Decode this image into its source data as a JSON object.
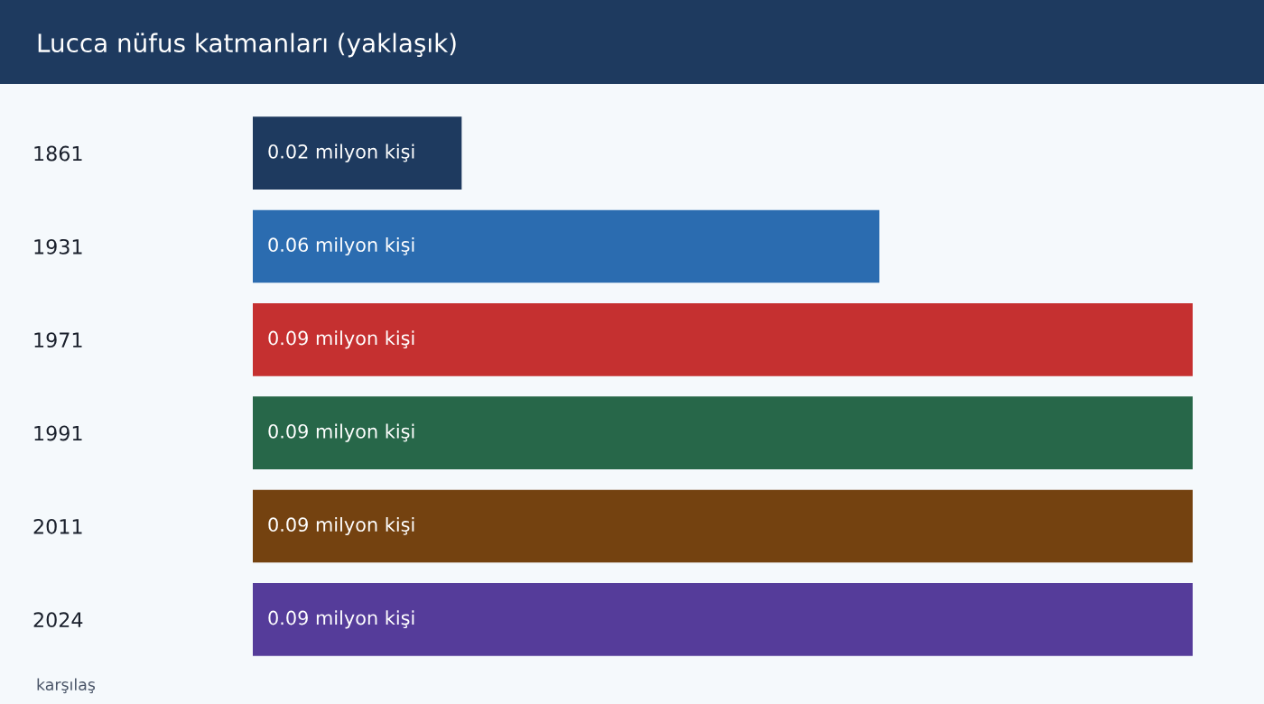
{
  "chart_data": {
    "type": "bar",
    "orientation": "horizontal",
    "title": "Lucca nüfus katmanları (yaklaşık)",
    "categories": [
      "1861",
      "1931",
      "1971",
      "1991",
      "2011",
      "2024"
    ],
    "values": [
      0.02,
      0.06,
      0.09,
      0.09,
      0.09,
      0.09
    ],
    "colors": [
      "#1e3a5f",
      "#2b6cb0",
      "#c53030",
      "#276749",
      "#744210",
      "#553c9a"
    ],
    "value_labels": [
      "0.02 milyon kişi",
      "0.06 milyon kişi",
      "0.09 milyon kişi",
      "0.09 milyon kişi",
      "0.09 milyon kişi",
      "0.09 milyon kişi"
    ],
    "tick_labels": "y",
    "annotations": [
      "karşılaş"
    ]
  }
}
